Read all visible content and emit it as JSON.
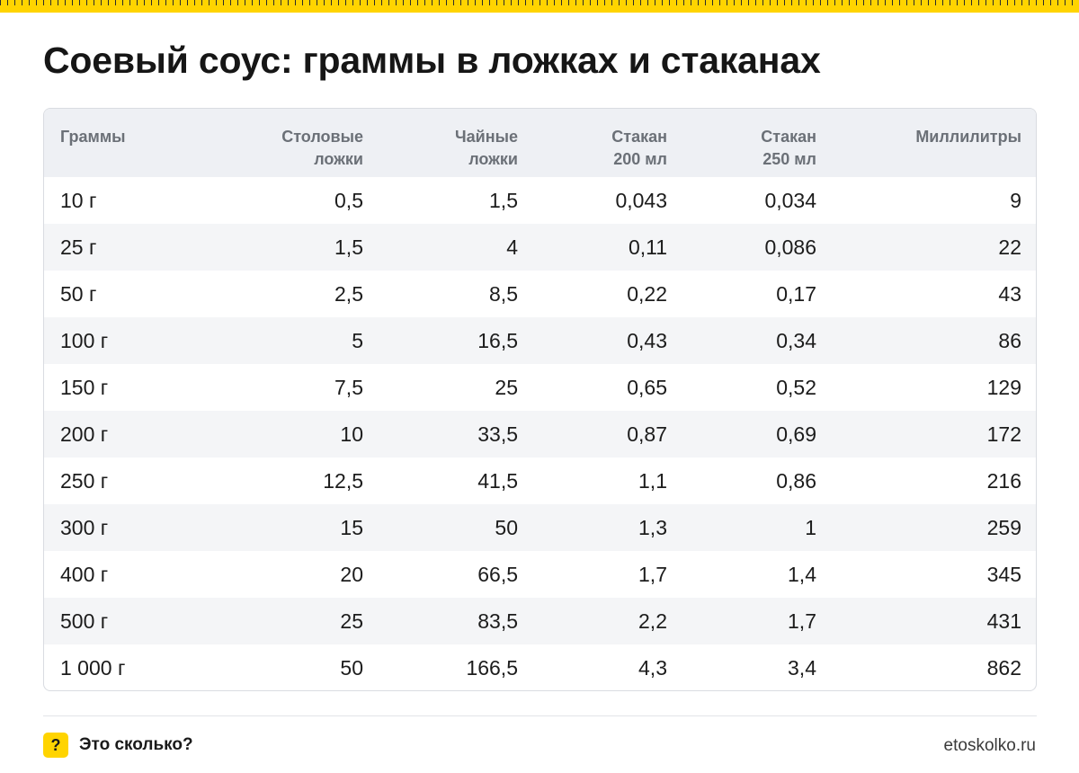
{
  "title": "Соевый соус: граммы в ложках и стаканах",
  "colors": {
    "accent": "#ffd400",
    "header_bg": "#eef0f4",
    "zebra": "#f4f5f7"
  },
  "table": {
    "columns": [
      "Граммы",
      "Столовые\nложки",
      "Чайные\nложки",
      "Стакан\n200 мл",
      "Стакан\n250 мл",
      "Миллилитры"
    ],
    "rows": [
      [
        "10 г",
        "0,5",
        "1,5",
        "0,043",
        "0,034",
        "9"
      ],
      [
        "25 г",
        "1,5",
        "4",
        "0,11",
        "0,086",
        "22"
      ],
      [
        "50 г",
        "2,5",
        "8,5",
        "0,22",
        "0,17",
        "43"
      ],
      [
        "100 г",
        "5",
        "16,5",
        "0,43",
        "0,34",
        "86"
      ],
      [
        "150 г",
        "7,5",
        "25",
        "0,65",
        "0,52",
        "129"
      ],
      [
        "200 г",
        "10",
        "33,5",
        "0,87",
        "0,69",
        "172"
      ],
      [
        "250 г",
        "12,5",
        "41,5",
        "1,1",
        "0,86",
        "216"
      ],
      [
        "300 г",
        "15",
        "50",
        "1,3",
        "1",
        "259"
      ],
      [
        "400 г",
        "20",
        "66,5",
        "1,7",
        "1,4",
        "345"
      ],
      [
        "500 г",
        "25",
        "83,5",
        "2,2",
        "1,7",
        "431"
      ],
      [
        "1 000 г",
        "50",
        "166,5",
        "4,3",
        "3,4",
        "862"
      ]
    ]
  },
  "footer": {
    "badge_icon": "question-mark-icon",
    "badge_glyph": "?",
    "brand": "Это сколько?",
    "url": "etoskolko.ru"
  }
}
